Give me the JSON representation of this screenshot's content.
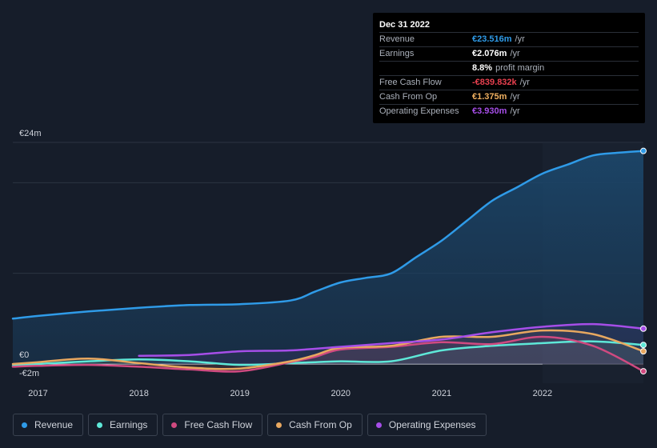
{
  "tooltip": {
    "date": "Dec 31 2022",
    "rows": [
      {
        "label": "Revenue",
        "value": "€23.516m",
        "unit": "/yr",
        "color": "#2f9be8"
      },
      {
        "label": "Earnings",
        "value": "€2.076m",
        "unit": "/yr",
        "color": "#ffffff"
      },
      {
        "label": "",
        "value": "8.8%",
        "unit": "profit margin",
        "color": "#ffffff"
      },
      {
        "label": "Free Cash Flow",
        "value": "-€839.832k",
        "unit": "/yr",
        "color": "#e8404f"
      },
      {
        "label": "Cash From Op",
        "value": "€1.375m",
        "unit": "/yr",
        "color": "#f0b060"
      },
      {
        "label": "Operating Expenses",
        "value": "€3.930m",
        "unit": "/yr",
        "color": "#a64ee8"
      }
    ]
  },
  "legend": [
    {
      "label": "Revenue",
      "color": "#2f9be8"
    },
    {
      "label": "Earnings",
      "color": "#5ee8d8"
    },
    {
      "label": "Free Cash Flow",
      "color": "#d04a80"
    },
    {
      "label": "Cash From Op",
      "color": "#e8a860"
    },
    {
      "label": "Operating Expenses",
      "color": "#a64ee8"
    }
  ],
  "chart_data": {
    "type": "area",
    "ylim": [
      -2,
      24
    ],
    "y_ticks": [
      {
        "value": 24,
        "label": "€24m"
      },
      {
        "value": 0,
        "label": "€0"
      },
      {
        "value": -2,
        "label": "-€2m"
      }
    ],
    "x_ticks": [
      {
        "value": 2017,
        "label": "2017"
      },
      {
        "value": 2018,
        "label": "2018"
      },
      {
        "value": 2019,
        "label": "2019"
      },
      {
        "value": 2020,
        "label": "2020"
      },
      {
        "value": 2021,
        "label": "2021"
      },
      {
        "value": 2022,
        "label": "2022"
      }
    ],
    "xlim": [
      2016.75,
      2023.0
    ],
    "highlight_from": 2022.0,
    "series": [
      {
        "name": "Revenue",
        "color": "#2f9be8",
        "fill": true,
        "points": [
          [
            2016.75,
            5.0
          ],
          [
            2017.0,
            5.3
          ],
          [
            2017.5,
            5.8
          ],
          [
            2018.0,
            6.2
          ],
          [
            2018.5,
            6.5
          ],
          [
            2019.0,
            6.6
          ],
          [
            2019.5,
            7.0
          ],
          [
            2019.75,
            8.0
          ],
          [
            2020.0,
            9.0
          ],
          [
            2020.25,
            9.5
          ],
          [
            2020.5,
            10.0
          ],
          [
            2020.75,
            11.8
          ],
          [
            2021.0,
            13.6
          ],
          [
            2021.25,
            15.8
          ],
          [
            2021.5,
            18.0
          ],
          [
            2021.75,
            19.5
          ],
          [
            2022.0,
            21.0
          ],
          [
            2022.25,
            22.0
          ],
          [
            2022.5,
            23.0
          ],
          [
            2022.75,
            23.3
          ],
          [
            2023.0,
            23.5
          ]
        ]
      },
      {
        "name": "Earnings",
        "color": "#5ee8d8",
        "fill": false,
        "points": [
          [
            2016.75,
            -0.2
          ],
          [
            2017.0,
            0.0
          ],
          [
            2017.5,
            0.3
          ],
          [
            2018.0,
            0.5
          ],
          [
            2018.5,
            0.3
          ],
          [
            2019.0,
            -0.1
          ],
          [
            2019.5,
            0.1
          ],
          [
            2019.75,
            0.2
          ],
          [
            2020.0,
            0.3
          ],
          [
            2020.5,
            0.3
          ],
          [
            2021.0,
            1.5
          ],
          [
            2021.5,
            2.0
          ],
          [
            2022.0,
            2.3
          ],
          [
            2022.5,
            2.5
          ],
          [
            2023.0,
            2.1
          ]
        ]
      },
      {
        "name": "Free Cash Flow",
        "color": "#d04a80",
        "fill": false,
        "points": [
          [
            2016.75,
            -0.3
          ],
          [
            2017.0,
            -0.2
          ],
          [
            2017.5,
            -0.1
          ],
          [
            2018.0,
            -0.3
          ],
          [
            2018.5,
            -0.6
          ],
          [
            2019.0,
            -0.8
          ],
          [
            2019.5,
            0.2
          ],
          [
            2019.75,
            0.8
          ],
          [
            2020.0,
            1.6
          ],
          [
            2020.5,
            1.9
          ],
          [
            2021.0,
            2.4
          ],
          [
            2021.5,
            2.2
          ],
          [
            2022.0,
            3.0
          ],
          [
            2022.5,
            2.0
          ],
          [
            2023.0,
            -0.8
          ]
        ]
      },
      {
        "name": "Cash From Op",
        "color": "#e8a860",
        "fill": false,
        "points": [
          [
            2016.75,
            0.0
          ],
          [
            2017.0,
            0.2
          ],
          [
            2017.5,
            0.6
          ],
          [
            2018.0,
            0.1
          ],
          [
            2018.5,
            -0.4
          ],
          [
            2019.0,
            -0.5
          ],
          [
            2019.5,
            0.3
          ],
          [
            2019.75,
            1.0
          ],
          [
            2020.0,
            1.8
          ],
          [
            2020.5,
            2.0
          ],
          [
            2021.0,
            3.0
          ],
          [
            2021.5,
            3.0
          ],
          [
            2022.0,
            3.7
          ],
          [
            2022.5,
            3.3
          ],
          [
            2023.0,
            1.4
          ]
        ]
      },
      {
        "name": "Operating Expenses",
        "color": "#a64ee8",
        "fill": false,
        "points": [
          [
            2018.0,
            0.9
          ],
          [
            2018.5,
            1.0
          ],
          [
            2019.0,
            1.4
          ],
          [
            2019.5,
            1.5
          ],
          [
            2020.0,
            1.9
          ],
          [
            2020.5,
            2.3
          ],
          [
            2021.0,
            2.7
          ],
          [
            2021.5,
            3.5
          ],
          [
            2022.0,
            4.1
          ],
          [
            2022.5,
            4.4
          ],
          [
            2023.0,
            3.9
          ]
        ]
      }
    ]
  }
}
